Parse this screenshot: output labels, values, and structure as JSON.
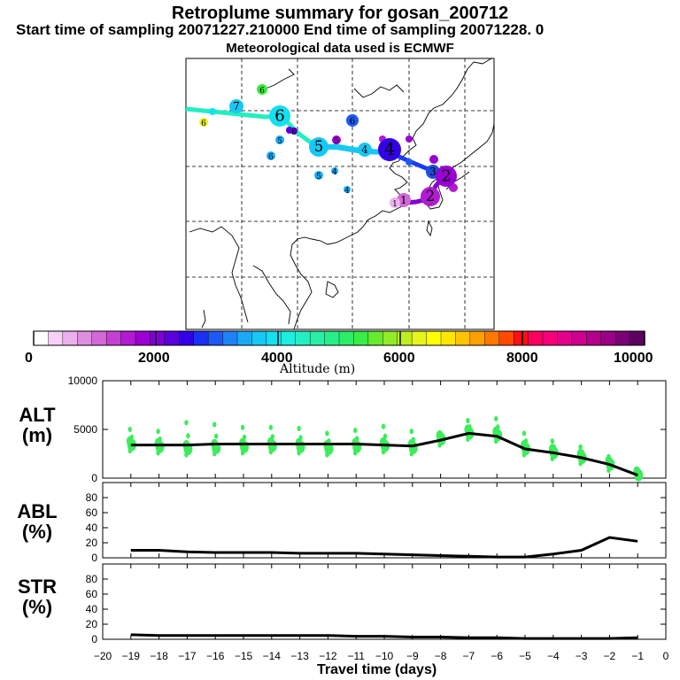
{
  "header": {
    "title": "Retroplume summary for gosan_200712",
    "subtitle": "Start time of sampling 20071227.210000     End time of sampling 20071228.     0",
    "met": "Meteorological data used is ECMWF"
  },
  "colorbar": {
    "min": 0,
    "max": 10000,
    "tick_labels": [
      "0",
      "2000",
      "4000",
      "6000",
      "8000",
      "10000"
    ],
    "label": "Altitude  (m)",
    "colors": [
      "#ffffff",
      "#f7d0f7",
      "#ecb0ec",
      "#df8ddf",
      "#d368d8",
      "#c63fd4",
      "#b31ad3",
      "#9a00d2",
      "#8000d4",
      "#5a00db",
      "#3300e6",
      "#1a30f2",
      "#1d5af5",
      "#1e82f7",
      "#1aaaf5",
      "#16c8f3",
      "#13e0f0",
      "#1deedf",
      "#22f0c4",
      "#26efa8",
      "#28ee88",
      "#2ced66",
      "#39ec46",
      "#66eb2f",
      "#92eb26",
      "#bdef1f",
      "#e6f51a",
      "#ffff00",
      "#ffe600",
      "#ffc400",
      "#ffa000",
      "#ff7800",
      "#ff4a00",
      "#ff1010",
      "#ff0060",
      "#f5007a",
      "#e5008c",
      "#cd0090",
      "#b4008a",
      "#9a0085",
      "#7a0075",
      "#5e0060"
    ]
  },
  "map": {
    "markers": [
      {
        "label": "6",
        "color": "#3be93f"
      },
      {
        "label": "7",
        "color": "#16c8f3"
      },
      {
        "label": "6",
        "color": "#e6f51a"
      },
      {
        "label": "6",
        "color": "#13e0f0"
      },
      {
        "label": "6",
        "color": "#5a00db"
      },
      {
        "label": "5",
        "color": "#1aaaf5"
      },
      {
        "label": "6",
        "color": "#1aaaf5"
      },
      {
        "label": "5",
        "color": "#16c8f3"
      },
      {
        "label": "6",
        "color": "#1d5af5"
      },
      {
        "label": "5",
        "color": "#9a00d2"
      },
      {
        "label": "4",
        "color": "#16c8f3"
      },
      {
        "label": "4",
        "color": "#3300e6"
      },
      {
        "label": "5",
        "color": "#1aaaf5"
      },
      {
        "label": "4",
        "color": "#1aaaf5"
      },
      {
        "label": "4",
        "color": "#1aaaf5"
      },
      {
        "label": "3",
        "color": "#1e4fe0"
      },
      {
        "label": "2",
        "color": "#9a00d2"
      },
      {
        "label": "2",
        "color": "#b31ad3"
      },
      {
        "label": "1",
        "color": "#d368d8"
      },
      {
        "label": "1",
        "color": "#ecb0ec"
      }
    ]
  },
  "chart_data": [
    {
      "type": "line",
      "panel": "ALT",
      "ylabel": "ALT\n(m)",
      "ylabel_lines": [
        "ALT",
        "(m)"
      ],
      "ylim": [
        0,
        10000
      ],
      "yticks": [
        "0",
        "5000",
        "10000"
      ],
      "x": [
        -19,
        -18,
        -17,
        -16,
        -15,
        -14,
        -13,
        -12,
        -11,
        -10,
        -9,
        -8,
        -7,
        -6,
        -5,
        -4,
        -3,
        -2,
        -1
      ],
      "values": [
        3400,
        3400,
        3400,
        3500,
        3500,
        3500,
        3500,
        3500,
        3500,
        3400,
        3300,
        3900,
        4600,
        4300,
        3000,
        2600,
        2100,
        1400,
        300
      ],
      "scatter_color": "#3cec5a"
    },
    {
      "type": "line",
      "panel": "ABL",
      "ylabel_lines": [
        "ABL",
        "(%)"
      ],
      "ylim": [
        0,
        100
      ],
      "yticks": [
        "0",
        "20",
        "40",
        "60",
        "80"
      ],
      "x": [
        -19,
        -18,
        -17,
        -16,
        -15,
        -14,
        -13,
        -12,
        -11,
        -10,
        -9,
        -8,
        -7,
        -6,
        -5,
        -4,
        -3,
        -2,
        -1
      ],
      "values": [
        10,
        10,
        8,
        7,
        7,
        7,
        6,
        6,
        6,
        5,
        4,
        3,
        2,
        1,
        1,
        5,
        10,
        27,
        22
      ]
    },
    {
      "type": "line",
      "panel": "STR",
      "ylabel_lines": [
        "STR",
        "(%)"
      ],
      "ylim": [
        0,
        100
      ],
      "yticks": [
        "0",
        "20",
        "40",
        "60",
        "80"
      ],
      "x": [
        -19,
        -18,
        -17,
        -16,
        -15,
        -14,
        -13,
        -12,
        -11,
        -10,
        -9,
        -8,
        -7,
        -6,
        -5,
        -4,
        -3,
        -2,
        -1
      ],
      "values": [
        6,
        5,
        5,
        5,
        5,
        5,
        5,
        5,
        4,
        4,
        3,
        3,
        2,
        2,
        1,
        1,
        1,
        1,
        2
      ],
      "xlabel": "Travel time (days)",
      "xticks": [
        "−20",
        "−19",
        "−18",
        "−17",
        "−16",
        "−15",
        "−14",
        "−13",
        "−12",
        "−11",
        "−10",
        "−9",
        "−8",
        "−7",
        "−6",
        "−5",
        "−4",
        "−3",
        "−2",
        "−1",
        "0"
      ]
    }
  ]
}
